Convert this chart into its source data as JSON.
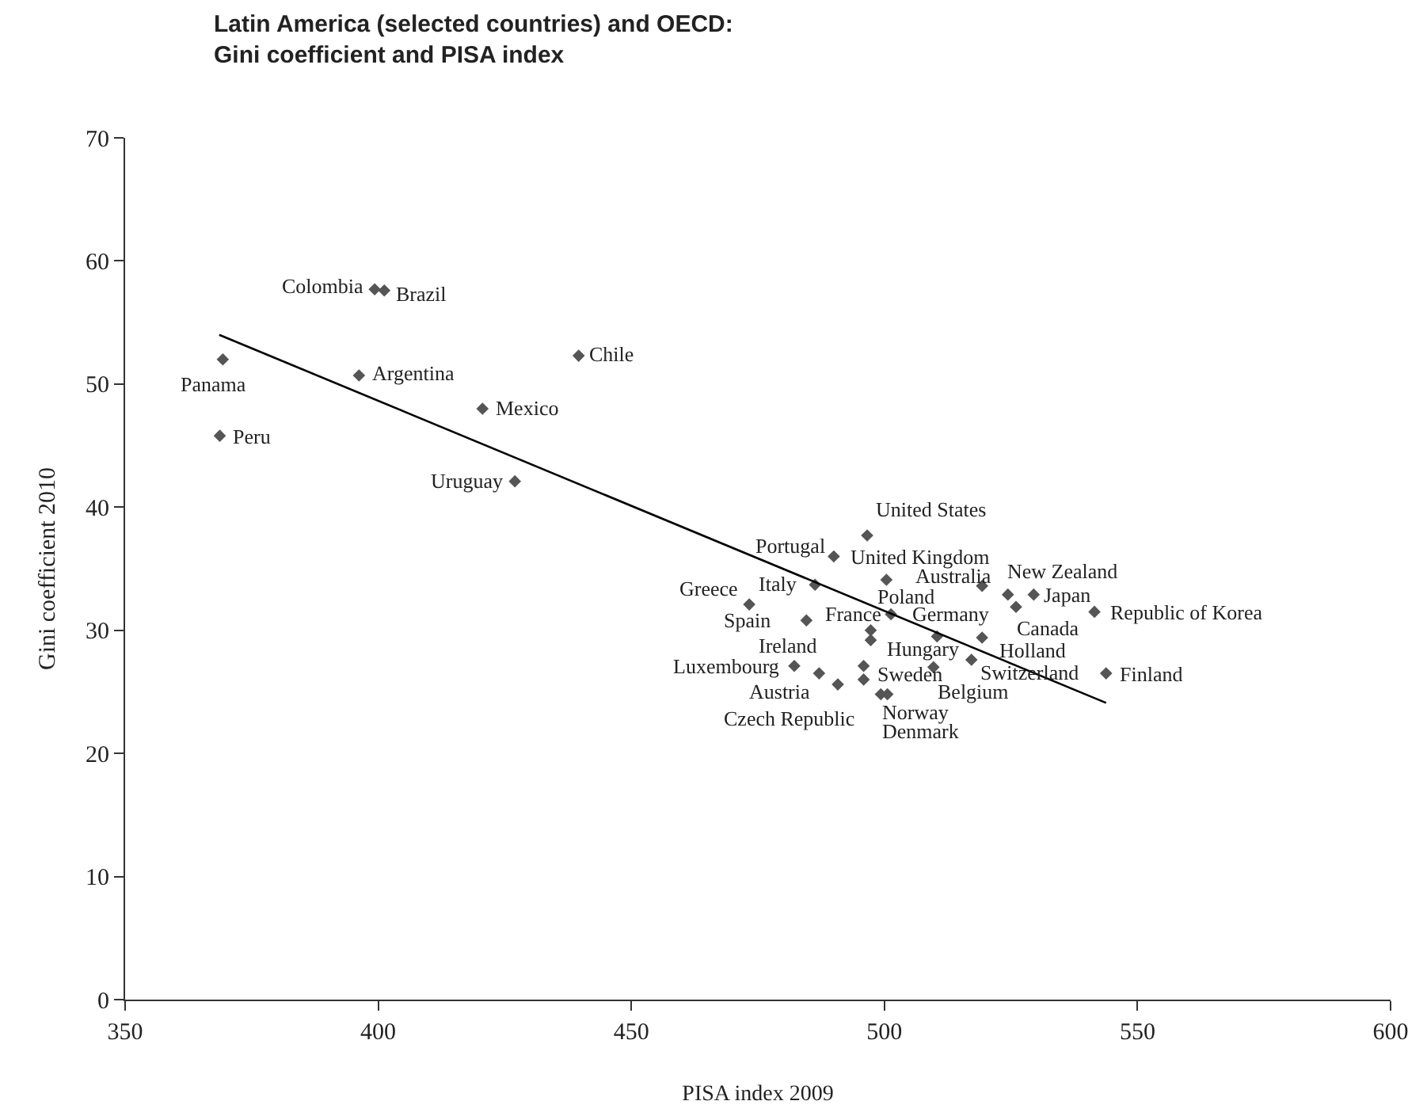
{
  "chart_data": {
    "type": "scatter",
    "title": "Latin America (selected countries) and OECD:\nGini coefficient and PISA index",
    "xlabel": "PISA index 2009",
    "ylabel": "Gini coefficient 2010",
    "xlim": [
      350,
      600
    ],
    "xticks": [
      350,
      400,
      450,
      500,
      550,
      600
    ],
    "ylim": [
      0,
      70
    ],
    "yticks": [
      0,
      10,
      20,
      30,
      40,
      50,
      60,
      70
    ],
    "series": [
      {
        "marker": "diamond",
        "color": "#555555",
        "x": [
          399.3,
          401.2,
          369.3,
          368.7,
          396.2,
          420.6,
          439.6,
          427.0,
          496.6,
          490.0,
          500.4,
          519.3,
          524.4,
          529.5,
          526.0,
          541.5,
          486.3,
          473.3,
          484.6,
          501.3,
          497.3,
          497.3,
          510.4,
          519.3,
          517.2,
          509.7,
          495.9,
          495.9,
          482.2,
          487.1,
          490.8,
          500.6,
          499.3,
          543.8
        ],
        "values": [
          57.7,
          57.6,
          52.0,
          45.8,
          50.7,
          48.0,
          52.3,
          42.1,
          37.7,
          36.0,
          34.1,
          33.6,
          32.9,
          32.9,
          31.9,
          31.5,
          33.7,
          32.1,
          30.8,
          31.3,
          30.0,
          29.2,
          29.5,
          29.4,
          27.6,
          27.0,
          27.1,
          26.0,
          27.1,
          26.5,
          25.6,
          24.8,
          24.8,
          26.5
        ]
      },
      {
        "type": "line",
        "marker": "none",
        "line_style": "solid",
        "color": "#000000",
        "x": [
          368.6,
          543.8
        ],
        "values": [
          54.0,
          24.1
        ]
      }
    ],
    "annotations": [
      {
        "text": "Colombia",
        "x": 399.3,
        "y": 57.7
      },
      {
        "text": "Brazil",
        "x": 401.2,
        "y": 57.6
      },
      {
        "text": "Panama",
        "x": 369.3,
        "y": 52.0
      },
      {
        "text": "Peru",
        "x": 368.7,
        "y": 45.8
      },
      {
        "text": "Argentina",
        "x": 396.2,
        "y": 50.7
      },
      {
        "text": "Mexico",
        "x": 420.6,
        "y": 48.0
      },
      {
        "text": "Chile",
        "x": 439.6,
        "y": 52.3
      },
      {
        "text": "Uruguay",
        "x": 427.0,
        "y": 42.1
      },
      {
        "text": "United States",
        "x": 496.6,
        "y": 37.7
      },
      {
        "text": "Portugal",
        "x": 490.0,
        "y": 36.0
      },
      {
        "text": "United Kingdom",
        "x": 500.4,
        "y": 34.1
      },
      {
        "text": "Australia",
        "x": 519.3,
        "y": 33.6
      },
      {
        "text": "New Zealand",
        "x": 524.4,
        "y": 32.9
      },
      {
        "text": "Japan",
        "x": 529.5,
        "y": 32.9
      },
      {
        "text": "Canada",
        "x": 526.0,
        "y": 31.9
      },
      {
        "text": "Republic of Korea",
        "x": 541.5,
        "y": 31.5
      },
      {
        "text": "Italy",
        "x": 486.3,
        "y": 33.7
      },
      {
        "text": "Greece",
        "x": 473.3,
        "y": 32.1
      },
      {
        "text": "Spain",
        "x": 484.6,
        "y": 30.8
      },
      {
        "text": "France",
        "x": 501.3,
        "y": 31.3
      },
      {
        "text": "Poland",
        "x": 497.3,
        "y": 30.0
      },
      {
        "text": "Ireland",
        "x": 497.3,
        "y": 29.2
      },
      {
        "text": "Germany",
        "x": 510.4,
        "y": 29.5
      },
      {
        "text": "Holland",
        "x": 519.3,
        "y": 29.4
      },
      {
        "text": "Switzerland",
        "x": 517.2,
        "y": 27.6
      },
      {
        "text": "Hungary",
        "x": 509.7,
        "y": 27.0
      },
      {
        "text": "Sweden",
        "x": 495.9,
        "y": 27.1
      },
      {
        "text": "Belgium",
        "x": 500.6,
        "y": 24.8
      },
      {
        "text": "Luxembourg",
        "x": 482.2,
        "y": 27.1
      },
      {
        "text": "Austria",
        "x": 487.1,
        "y": 26.5
      },
      {
        "text": "Czech Republic",
        "x": 490.8,
        "y": 25.6
      },
      {
        "text": "Norway",
        "x": 499.3,
        "y": 24.8
      },
      {
        "text": "Denmark",
        "x": 495.9,
        "y": 26.0
      },
      {
        "text": "Finland",
        "x": 543.8,
        "y": 26.5
      }
    ]
  }
}
